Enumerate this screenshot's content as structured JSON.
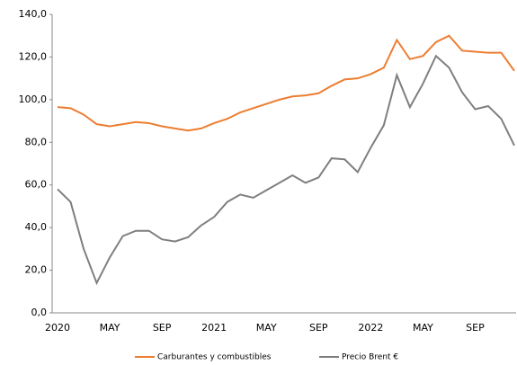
{
  "chart_data": {
    "type": "line",
    "categories": [
      "2020",
      null,
      null,
      null,
      "MAY",
      null,
      null,
      null,
      "SEP",
      null,
      null,
      null,
      "2021",
      null,
      null,
      null,
      "MAY",
      null,
      null,
      null,
      "SEP",
      null,
      null,
      null,
      "2022",
      null,
      null,
      null,
      "MAY",
      null,
      null,
      null,
      "SEP",
      null,
      null,
      null
    ],
    "series": [
      {
        "name": "Carburantes y combustibles",
        "color": "#ed7d31",
        "values": [
          96.5,
          96,
          93,
          88.5,
          87.5,
          88.5,
          89.5,
          89,
          87.5,
          86.5,
          85.5,
          86.5,
          89,
          91,
          94,
          96,
          98,
          100,
          101.5,
          102,
          103,
          106.5,
          109.5,
          110,
          112,
          115,
          128,
          119,
          120.5,
          127,
          130,
          123,
          122.5,
          122,
          122,
          113.5
        ]
      },
      {
        "name": "Precio Brent €",
        "color": "#7f7f7f",
        "values": [
          58,
          52,
          30,
          14,
          26,
          36,
          38.5,
          38.5,
          34.5,
          33.5,
          35.5,
          41,
          45,
          52,
          55.5,
          54,
          57.5,
          61,
          64.5,
          61,
          63.5,
          72.5,
          72,
          66,
          77.5,
          88,
          111.5,
          96.5,
          107.5,
          120.5,
          115,
          103.5,
          95.5,
          97,
          91,
          78.5
        ]
      }
    ],
    "ylim": [
      0,
      140
    ],
    "yticks": [
      {
        "value": 0,
        "label": "0,0"
      },
      {
        "value": 20,
        "label": "20,0"
      },
      {
        "value": 40,
        "label": "40,0"
      },
      {
        "value": 60,
        "label": "60,0"
      },
      {
        "value": 80,
        "label": "80,0"
      },
      {
        "value": 100,
        "label": "100,0"
      },
      {
        "value": 120,
        "label": "120,0"
      },
      {
        "value": 140,
        "label": "140,0"
      }
    ],
    "legend": "bottom"
  }
}
